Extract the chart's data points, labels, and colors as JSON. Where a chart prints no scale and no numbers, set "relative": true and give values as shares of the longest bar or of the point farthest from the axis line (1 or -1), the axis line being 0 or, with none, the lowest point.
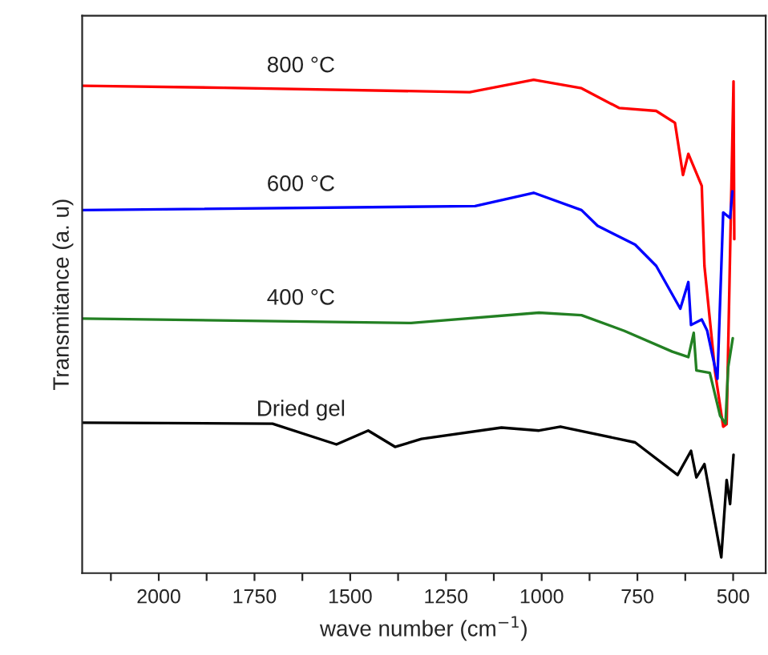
{
  "chart_data": {
    "type": "line",
    "relative": true,
    "xlabel": "wave number (cm$^{−1}$)",
    "ylabel": "Transmitance (a. u)",
    "xlim": [
      2200,
      415
    ],
    "xticks": [
      {
        "value": 2125,
        "label": null
      },
      2000,
      {
        "value": 1875,
        "label": null
      },
      1750,
      {
        "value": 1625,
        "label": null
      },
      1500,
      {
        "value": 1375,
        "label": null
      },
      1250,
      {
        "value": 1125,
        "label": null
      },
      1000,
      {
        "value": 875,
        "label": null
      },
      750,
      {
        "value": 625,
        "label": null
      },
      500
    ],
    "grid": false,
    "legend": false,
    "marker": "none",
    "line_style": "solid",
    "series": [
      {
        "name": "800 °C",
        "color": "#ff0000",
        "x": [
          2198,
          1829,
          1188,
          1021,
          896,
          798,
          701,
          652,
          631,
          617,
          582,
          575,
          547,
          526,
          517,
          499,
          497
        ],
        "values": [
          0.988,
          0.984,
          0.975,
          1.0,
          0.983,
          0.943,
          0.937,
          0.913,
          0.807,
          0.85,
          0.785,
          0.623,
          0.407,
          0.297,
          0.302,
          0.997,
          0.677
        ]
      },
      {
        "name": "600 °C",
        "color": "#0000ff",
        "x": [
          2198,
          1174,
          1021,
          896,
          854,
          756,
          701,
          638,
          617,
          610,
          582,
          568,
          541,
          526,
          508,
          502
        ],
        "values": [
          0.736,
          0.744,
          0.771,
          0.736,
          0.704,
          0.666,
          0.623,
          0.536,
          0.59,
          0.503,
          0.514,
          0.492,
          0.394,
          0.731,
          0.72,
          0.774
        ]
      },
      {
        "name": "400 °C",
        "color": "#238023",
        "x": [
          2198,
          1341,
          1007,
          896,
          784,
          659,
          617,
          603,
          596,
          561,
          534,
          520,
          513,
          501
        ],
        "values": [
          0.516,
          0.507,
          0.528,
          0.523,
          0.491,
          0.449,
          0.438,
          0.487,
          0.411,
          0.406,
          0.319,
          0.303,
          0.417,
          0.476
        ]
      },
      {
        "name": "Dried gel",
        "color": "#000000",
        "x": [
          2198,
          1703,
          1536,
          1453,
          1383,
          1314,
          1105,
          1007,
          951,
          756,
          645,
          610,
          596,
          575,
          531,
          517,
          508,
          499
        ],
        "values": [
          0.305,
          0.303,
          0.261,
          0.289,
          0.256,
          0.272,
          0.295,
          0.289,
          0.297,
          0.265,
          0.199,
          0.248,
          0.194,
          0.221,
          0.032,
          0.189,
          0.14,
          0.24
        ]
      }
    ]
  }
}
